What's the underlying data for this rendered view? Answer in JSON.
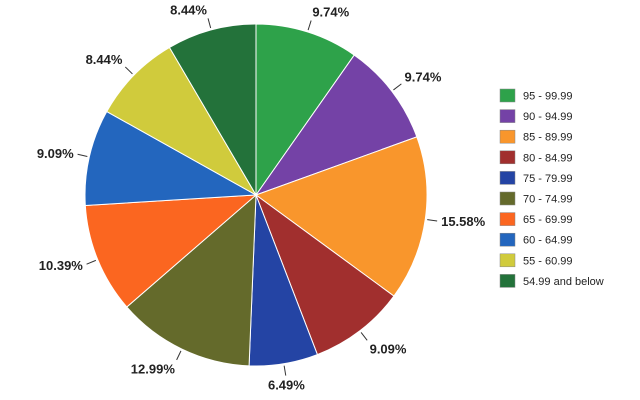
{
  "chart_data": {
    "type": "pie",
    "title": "",
    "start_angle_deg": 0,
    "direction": "clockwise",
    "legend_position": "right",
    "slices": [
      {
        "label": "95 - 99.99",
        "value": 9.74,
        "display": "9.74%",
        "color": "#2ea24a"
      },
      {
        "label": "90 - 94.99",
        "value": 9.74,
        "display": "9.74%",
        "color": "#7442a6"
      },
      {
        "label": "85 - 89.99",
        "value": 15.58,
        "display": "15.58%",
        "color": "#f9962c"
      },
      {
        "label": "80 - 84.99",
        "value": 9.09,
        "display": "9.09%",
        "color": "#a12f2e"
      },
      {
        "label": "75 - 79.99",
        "value": 6.49,
        "display": "6.49%",
        "color": "#2444a4"
      },
      {
        "label": "70 - 74.99",
        "value": 12.99,
        "display": "12.99%",
        "color": "#646a2b"
      },
      {
        "label": "65 - 69.99",
        "value": 10.39,
        "display": "10.39%",
        "color": "#fb6620"
      },
      {
        "label": "60 - 64.99",
        "value": 9.09,
        "display": "9.09%",
        "color": "#2366be"
      },
      {
        "label": "55 - 60.99",
        "value": 8.44,
        "display": "8.44%",
        "color": "#d0cb3c"
      },
      {
        "label": "54.99 and below",
        "value": 8.44,
        "display": "8.44%",
        "color": "#23723a"
      }
    ]
  }
}
